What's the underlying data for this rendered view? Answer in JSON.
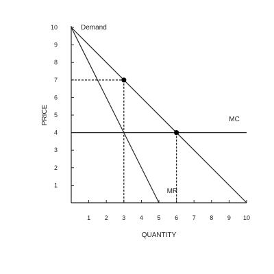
{
  "chart_data": {
    "type": "line",
    "xlabel": "QUANTITY",
    "ylabel": "PRICE",
    "xlim": [
      0,
      10
    ],
    "ylim": [
      0,
      10
    ],
    "x_ticks": [
      1,
      2,
      3,
      4,
      5,
      6,
      7,
      8,
      9,
      10
    ],
    "y_ticks": [
      1,
      2,
      3,
      4,
      5,
      6,
      7,
      8,
      9,
      10
    ],
    "grid": false,
    "series": [
      {
        "name": "Demand",
        "points": [
          [
            0,
            10
          ],
          [
            10,
            0
          ]
        ]
      },
      {
        "name": "MR",
        "points": [
          [
            0,
            10
          ],
          [
            5,
            0
          ]
        ]
      },
      {
        "name": "MC",
        "points": [
          [
            0,
            4
          ],
          [
            10,
            4
          ]
        ]
      }
    ],
    "highlight_points": [
      {
        "x": 3,
        "y": 7
      },
      {
        "x": 6,
        "y": 4
      }
    ],
    "reference_lines": [
      {
        "from": [
          0,
          7
        ],
        "to": [
          3,
          7
        ]
      },
      {
        "from": [
          3,
          7
        ],
        "to": [
          3,
          0
        ]
      },
      {
        "from": [
          6,
          4
        ],
        "to": [
          6,
          0
        ]
      }
    ]
  },
  "colors": {
    "line": "#222222",
    "marker": "#000000"
  }
}
